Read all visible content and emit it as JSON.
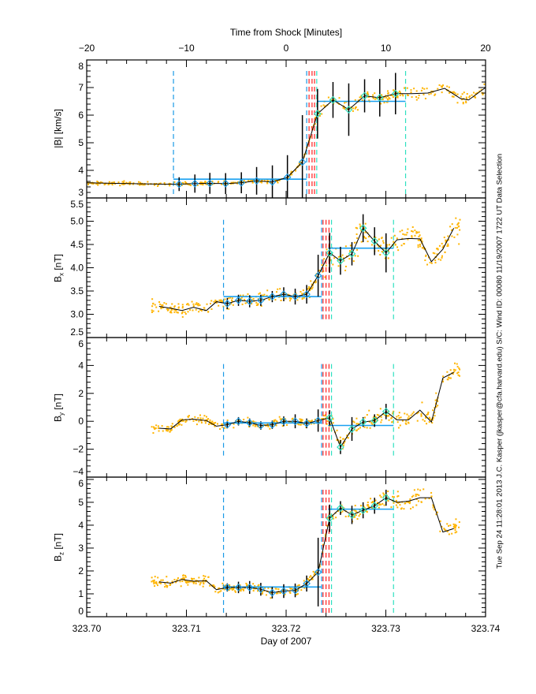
{
  "chart_data": {
    "type": "scatter",
    "colors": {
      "scatter": "#ffb400",
      "fit": "#1aa0f0",
      "upstream": "#1a9ae6",
      "downstream": "#2ee0c0",
      "shock": "#ff2020",
      "line": "#000000"
    },
    "top_axis": {
      "title": "Time from Shock [Minutes]",
      "lim": [
        -20,
        20
      ],
      "ticks": [
        -20,
        -10,
        0,
        10,
        20
      ],
      "labels": [
        "−20",
        "−10",
        "0",
        "10",
        "20"
      ]
    },
    "bottom_axis": {
      "title": "Day of 2007",
      "lim": [
        323.7,
        323.74
      ],
      "ticks": [
        323.7,
        323.71,
        323.72,
        323.73,
        323.74
      ],
      "labels": [
        "323.70",
        "323.71",
        "323.72",
        "323.73",
        "323.74"
      ]
    },
    "side_caption": "Tue Sep 24 11:28:01 2013   J.C. Kasper (jkasper@cfa.harvard.edu)   S/C: Wind ID: 00080 11/19/2007   1722 UT Data Selection",
    "panels": [
      {
        "name": "B-magnitude",
        "xaxis": "minutes",
        "ylabel": {
          "main": "|B|",
          "sub": "",
          "unit": "[km/s]"
        },
        "ylim": [
          3,
          8
        ],
        "yticks": [
          3,
          4,
          5,
          6,
          7,
          8
        ],
        "ytick_labels": [
          "3",
          "4",
          "5",
          "6",
          "7",
          "8"
        ],
        "line": {
          "x": [
            -20,
            -12.5,
            -10.73,
            -9.15,
            -7.65,
            -6.07,
            -4.49,
            -2.96,
            -1.38,
            0.13,
            1.63,
            3.15,
            4.7,
            6.28,
            7.87,
            9.39,
            10.97,
            12.6,
            14.2,
            15.9,
            17.5,
            18.3,
            20
          ],
          "y": [
            3.55,
            3.5,
            3.5,
            3.52,
            3.53,
            3.52,
            3.55,
            3.62,
            3.58,
            3.75,
            4.3,
            6.05,
            6.55,
            6.2,
            6.7,
            6.63,
            6.78,
            6.78,
            6.8,
            6.97,
            6.6,
            6.55,
            7.0
          ]
        },
        "errorbars": {
          "x": [
            -10.73,
            -9.15,
            -7.65,
            -6.07,
            -4.49,
            -2.96,
            -1.38,
            0.13,
            1.63,
            3.15,
            4.7,
            6.28,
            7.87,
            9.39,
            10.97
          ],
          "y": [
            3.5,
            3.52,
            3.53,
            3.52,
            3.55,
            3.62,
            3.58,
            3.75,
            4.3,
            6.05,
            6.55,
            6.2,
            6.7,
            6.63,
            6.78
          ],
          "err": [
            0.25,
            0.33,
            0.38,
            0.38,
            0.38,
            0.5,
            0.6,
            0.8,
            1.7,
            0.9,
            0.65,
            0.95,
            0.6,
            0.68,
            0.75
          ],
          "phase": [
            "up",
            "up",
            "up",
            "up",
            "up",
            "up",
            "up",
            "up",
            "up",
            "down",
            "down",
            "down",
            "down",
            "down",
            "down"
          ]
        },
        "fits": [
          {
            "phase": "up",
            "from": -11.3,
            "to": 2.06,
            "value": 3.68
          },
          {
            "phase": "down",
            "from": 3.07,
            "to": 11.98,
            "value": 6.5
          }
        ],
        "dashed": [
          {
            "x": -11.3,
            "kind": "upstream"
          },
          {
            "x": 2.06,
            "kind": "upstream"
          },
          {
            "x": 2.3,
            "kind": "shock"
          },
          {
            "x": 2.6,
            "kind": "shock"
          },
          {
            "x": 2.85,
            "kind": "shock"
          },
          {
            "x": 3.07,
            "kind": "downstream"
          },
          {
            "x": 11.98,
            "kind": "downstream"
          }
        ],
        "dash_range": [
          3.1,
          7.6
        ],
        "scatter": {
          "from": -20,
          "to": 20,
          "spread_up": 0.05,
          "spread_down": 0.15,
          "shock": 2.5
        }
      },
      {
        "name": "Bx",
        "xaxis": "day",
        "ylabel": {
          "main": "B",
          "sub": "x",
          "unit": "[nT]"
        },
        "ylim": [
          2.5,
          5.5
        ],
        "yticks": [
          2.5,
          3.0,
          3.5,
          4.0,
          4.5,
          5.0,
          5.5
        ],
        "ytick_labels": [
          "2.5",
          "3.0",
          "3.5",
          "4.0",
          "4.5",
          "5.0",
          "5.5"
        ],
        "line": {
          "x": [
            323.70726,
            323.70841,
            323.70956,
            323.71071,
            323.712,
            323.71301,
            323.7141,
            323.71522,
            323.71634,
            323.71746,
            323.71861,
            323.71976,
            323.72091,
            323.72206,
            323.72321,
            323.72436,
            323.72545,
            323.7266,
            323.72772,
            323.72887,
            323.73002,
            323.73111,
            323.73227,
            323.73342,
            323.73457,
            323.73572,
            323.73681
          ],
          "y": [
            3.17,
            3.13,
            3.08,
            3.15,
            3.08,
            3.27,
            3.23,
            3.3,
            3.28,
            3.3,
            3.38,
            3.43,
            3.38,
            3.43,
            3.83,
            4.32,
            4.15,
            4.3,
            4.85,
            4.57,
            4.32,
            4.6,
            4.63,
            4.62,
            4.13,
            4.4,
            4.85
          ]
        },
        "errorbars": {
          "x": [
            323.7141,
            323.71522,
            323.71634,
            323.71746,
            323.71861,
            323.71976,
            323.72091,
            323.72206,
            323.72321,
            323.72436,
            323.72545,
            323.7266,
            323.72772,
            323.72887,
            323.73002
          ],
          "y": [
            3.23,
            3.3,
            3.28,
            3.3,
            3.38,
            3.43,
            3.38,
            3.43,
            3.83,
            4.32,
            4.15,
            4.3,
            4.85,
            4.57,
            4.32
          ],
          "err": [
            0.12,
            0.12,
            0.13,
            0.12,
            0.12,
            0.15,
            0.17,
            0.2,
            0.45,
            0.43,
            0.3,
            0.25,
            0.3,
            0.3,
            0.42
          ],
          "phase": [
            "up",
            "up",
            "up",
            "up",
            "up",
            "up",
            "up",
            "up",
            "up",
            "down",
            "down",
            "down",
            "down",
            "down",
            "down"
          ]
        },
        "fits": [
          {
            "phase": "up",
            "from": 323.71372,
            "to": 323.72356,
            "value": 3.38
          },
          {
            "phase": "down",
            "from": 323.72422,
            "to": 323.73077,
            "value": 4.42
          }
        ],
        "dashed": [
          {
            "x": 323.71372,
            "kind": "upstream"
          },
          {
            "x": 323.72356,
            "kind": "upstream"
          },
          {
            "x": 323.7237,
            "kind": "shock"
          },
          {
            "x": 323.724,
            "kind": "shock"
          },
          {
            "x": 323.7243,
            "kind": "shock"
          },
          {
            "x": 323.72455,
            "kind": "downstream"
          },
          {
            "x": 323.73077,
            "kind": "downstream"
          }
        ],
        "dash_range": [
          2.85,
          5.03
        ],
        "scatter": {
          "from": 323.7065,
          "to": 323.7375,
          "spread_up": 0.1,
          "spread_down": 0.2,
          "shock": 323.7238
        }
      },
      {
        "name": "By",
        "xaxis": "day",
        "ylabel": {
          "main": "B",
          "sub": "y",
          "unit": "[nT]"
        },
        "ylim": [
          -4,
          6
        ],
        "yticks": [
          -4,
          -2,
          0,
          2,
          4,
          6
        ],
        "ytick_labels": [
          "−4",
          "−2",
          "0",
          "2",
          "4",
          "6"
        ],
        "line": {
          "x": [
            323.70726,
            323.70841,
            323.70956,
            323.71071,
            323.712,
            323.71301,
            323.7141,
            323.71522,
            323.71634,
            323.71746,
            323.71861,
            323.71976,
            323.72091,
            323.72206,
            323.72321,
            323.72436,
            323.72545,
            323.7266,
            323.72772,
            323.72887,
            323.73002,
            323.73111,
            323.73227,
            323.73342,
            323.73457,
            323.73572,
            323.73681
          ],
          "y": [
            -0.5,
            -0.55,
            0.1,
            0.15,
            0.05,
            -0.35,
            -0.25,
            0.0,
            -0.1,
            -0.3,
            -0.25,
            0.0,
            0.0,
            -0.15,
            0.05,
            0.25,
            -1.85,
            -0.55,
            -0.05,
            0.05,
            0.7,
            0.1,
            0.1,
            0.8,
            -0.05,
            3.1,
            3.5
          ]
        },
        "errorbars": {
          "x": [
            323.7141,
            323.71522,
            323.71634,
            323.71746,
            323.71861,
            323.71976,
            323.72091,
            323.72206,
            323.72321,
            323.72436,
            323.72545,
            323.7266,
            323.72772,
            323.72887,
            323.73002
          ],
          "y": [
            -0.25,
            0.0,
            -0.1,
            -0.3,
            -0.25,
            0.0,
            0.0,
            -0.15,
            0.05,
            0.25,
            -1.85,
            -0.55,
            -0.05,
            0.05,
            0.7
          ],
          "err": [
            0.25,
            0.3,
            0.3,
            0.3,
            0.3,
            0.35,
            0.5,
            0.35,
            0.8,
            0.55,
            0.5,
            0.85,
            0.35,
            0.45,
            0.55
          ],
          "phase": [
            "up",
            "up",
            "up",
            "up",
            "up",
            "up",
            "up",
            "up",
            "up",
            "down",
            "down",
            "down",
            "down",
            "down",
            "down"
          ]
        },
        "fits": [
          {
            "phase": "up",
            "from": 323.71372,
            "to": 323.72356,
            "value": -0.12
          },
          {
            "phase": "down",
            "from": 323.72422,
            "to": 323.73077,
            "value": -0.3
          }
        ],
        "dashed": [
          {
            "x": 323.71372,
            "kind": "upstream"
          },
          {
            "x": 323.72356,
            "kind": "upstream"
          },
          {
            "x": 323.7237,
            "kind": "shock"
          },
          {
            "x": 323.724,
            "kind": "shock"
          },
          {
            "x": 323.7243,
            "kind": "shock"
          },
          {
            "x": 323.72455,
            "kind": "downstream"
          },
          {
            "x": 323.73077,
            "kind": "downstream"
          }
        ],
        "dash_range": [
          -2.5,
          4.1
        ],
        "scatter": {
          "from": 323.7065,
          "to": 323.7375,
          "spread_up": 0.2,
          "spread_down": 0.45,
          "shock": 323.7238
        }
      },
      {
        "name": "Bz",
        "xaxis": "day",
        "ylabel": {
          "main": "B",
          "sub": "z",
          "unit": "[nT]"
        },
        "ylim": [
          0,
          6.1
        ],
        "yticks": [
          0,
          1,
          2,
          3,
          4,
          5,
          6
        ],
        "ytick_labels": [
          "0",
          "1",
          "2",
          "3",
          "4",
          "5",
          "6"
        ],
        "line": {
          "x": [
            323.70726,
            323.70841,
            323.70956,
            323.71071,
            323.712,
            323.71301,
            323.7141,
            323.71522,
            323.71634,
            323.71746,
            323.71861,
            323.71976,
            323.72091,
            323.72206,
            323.72321,
            323.72436,
            323.72545,
            323.7266,
            323.72772,
            323.72887,
            323.73002,
            323.73111,
            323.73227,
            323.73342,
            323.73457,
            323.73572,
            323.73681
          ],
          "y": [
            1.52,
            1.47,
            1.63,
            1.55,
            1.57,
            1.18,
            1.28,
            1.28,
            1.28,
            1.2,
            1.05,
            1.12,
            1.15,
            1.45,
            1.95,
            4.3,
            4.75,
            4.45,
            4.65,
            4.85,
            5.2,
            5.0,
            5.05,
            5.2,
            5.2,
            3.7,
            3.85
          ]
        },
        "errorbars": {
          "x": [
            323.7141,
            323.71522,
            323.71634,
            323.71746,
            323.71861,
            323.71976,
            323.72091,
            323.72206,
            323.72321,
            323.72436,
            323.72545,
            323.7266,
            323.72772,
            323.72887,
            323.73002
          ],
          "y": [
            1.28,
            1.28,
            1.28,
            1.2,
            1.05,
            1.12,
            1.15,
            1.45,
            1.95,
            4.3,
            4.75,
            4.45,
            4.65,
            4.85,
            5.2
          ],
          "err": [
            0.18,
            0.25,
            0.28,
            0.28,
            0.25,
            0.3,
            0.3,
            0.35,
            1.5,
            0.6,
            0.3,
            0.4,
            0.35,
            0.35,
            0.35
          ],
          "phase": [
            "up",
            "up",
            "up",
            "up",
            "up",
            "up",
            "up",
            "up",
            "up",
            "down",
            "down",
            "down",
            "down",
            "down",
            "down"
          ]
        },
        "fits": [
          {
            "phase": "up",
            "from": 323.71372,
            "to": 323.72356,
            "value": 1.3
          },
          {
            "phase": "down",
            "from": 323.72422,
            "to": 323.73077,
            "value": 4.7
          }
        ],
        "dashed": [
          {
            "x": 323.71372,
            "kind": "upstream"
          },
          {
            "x": 323.72356,
            "kind": "upstream"
          },
          {
            "x": 323.7237,
            "kind": "shock"
          },
          {
            "x": 323.724,
            "kind": "shock"
          },
          {
            "x": 323.7243,
            "kind": "shock"
          },
          {
            "x": 323.72455,
            "kind": "downstream"
          },
          {
            "x": 323.73077,
            "kind": "downstream"
          }
        ],
        "dash_range": [
          0.1,
          5.55
        ],
        "scatter": {
          "from": 323.7065,
          "to": 323.7375,
          "spread_up": 0.15,
          "spread_down": 0.25,
          "shock": 323.7238
        }
      }
    ]
  }
}
